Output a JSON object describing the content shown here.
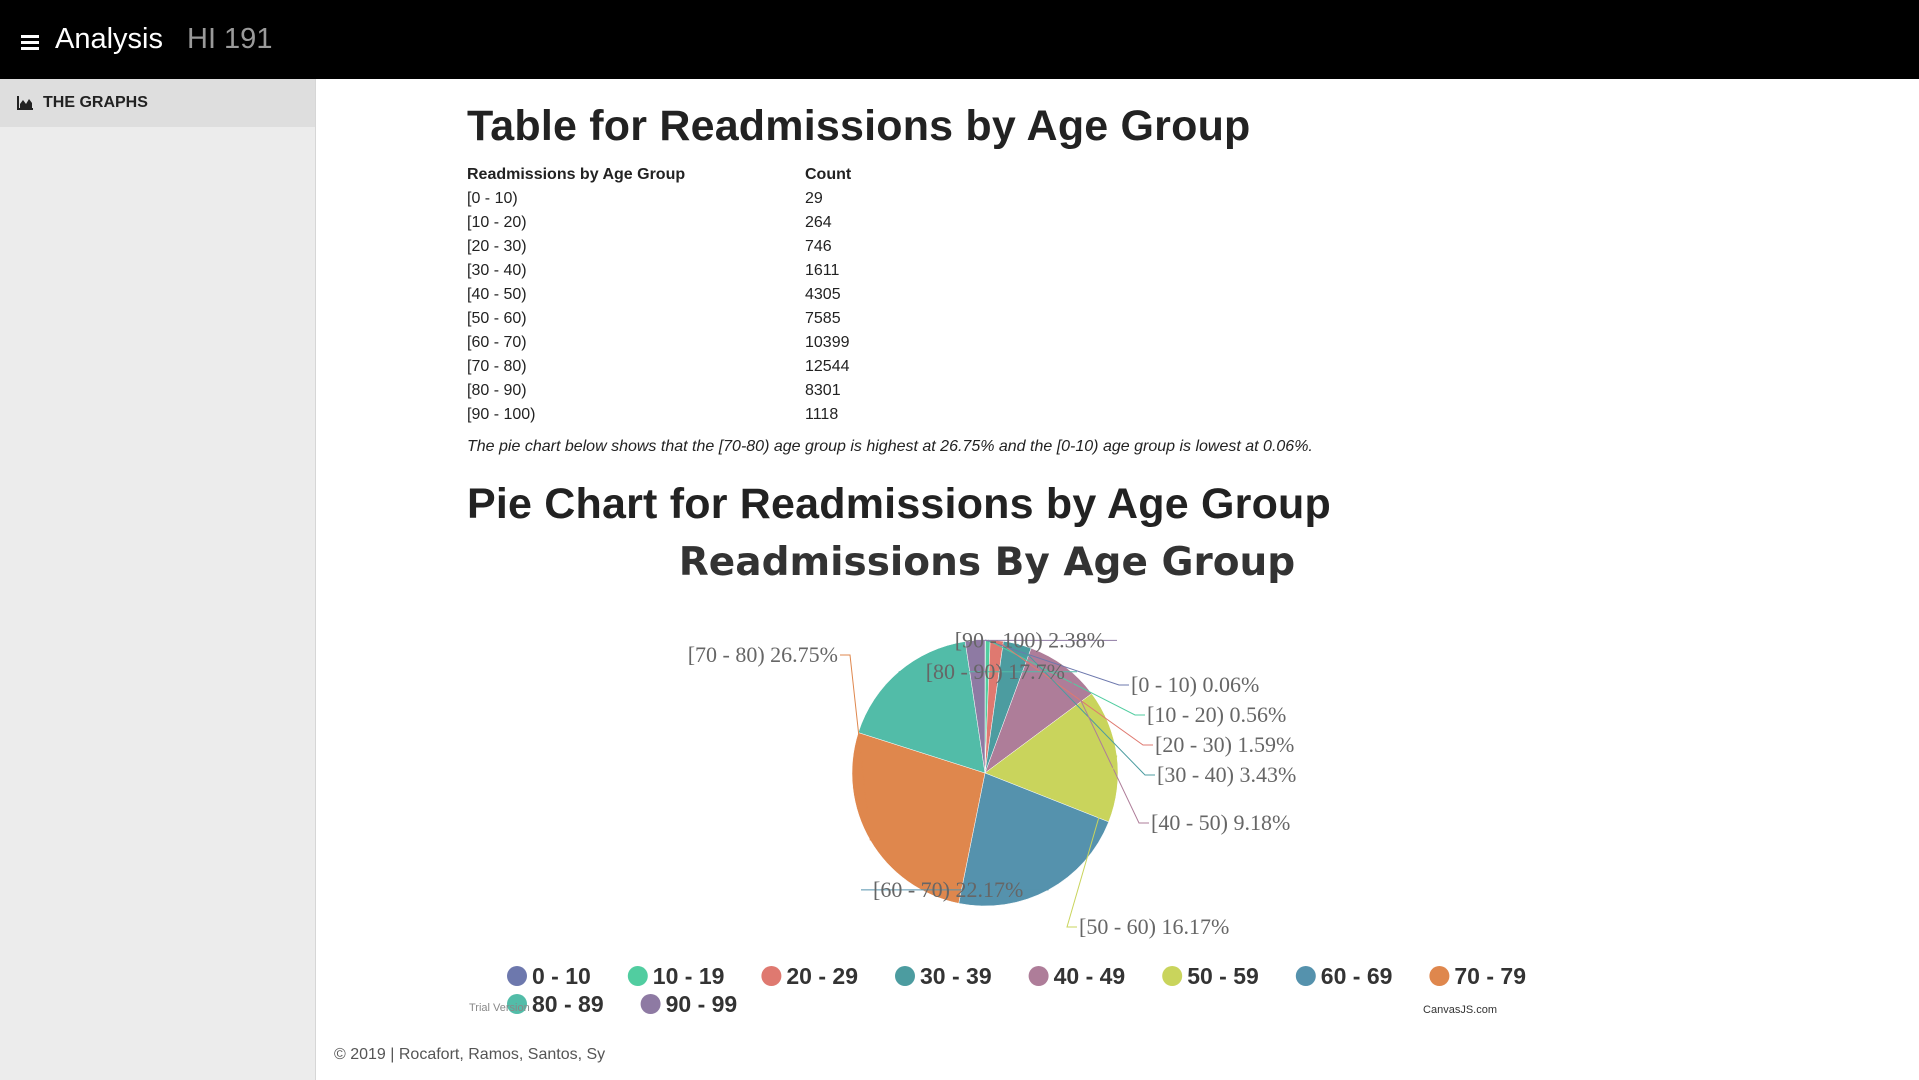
{
  "header": {
    "menu_icon": "hamburger-menu-icon",
    "title": "Analysis",
    "subtitle": "HI 191"
  },
  "sidebar": {
    "items": [
      {
        "icon": "area-chart-icon",
        "label": "THE GRAPHS"
      }
    ]
  },
  "main": {
    "table_heading": "Table for Readmissions by Age Group",
    "table": {
      "columns": [
        "Readmissions by Age Group",
        "Count"
      ],
      "rows": [
        [
          "[0 - 10)",
          "29"
        ],
        [
          "[10 - 20)",
          "264"
        ],
        [
          "[20 - 30)",
          "746"
        ],
        [
          "[30 - 40)",
          "1611"
        ],
        [
          "[40 - 50)",
          "4305"
        ],
        [
          "[50 - 60)",
          "7585"
        ],
        [
          "[60 - 70)",
          "10399"
        ],
        [
          "[70 - 80)",
          "12544"
        ],
        [
          "[80 - 90)",
          "8301"
        ],
        [
          "[90 - 100)",
          "1118"
        ]
      ]
    },
    "note": "The pie chart below shows that the [70-80) age group is highest at 26.75% and the [0-10) age group is lowest at 0.06%.",
    "pie_heading": "Pie Chart for Readmissions by Age Group"
  },
  "chart_data": {
    "type": "pie",
    "title": "Readmissions By Age Group",
    "slices": [
      {
        "label": "[0 - 10) 0.06%",
        "legend": "0 - 10",
        "value": 0.06,
        "color": "#6d78ad"
      },
      {
        "label": "[10 - 20) 0.56%",
        "legend": "10 - 19",
        "value": 0.56,
        "color": "#51cda0"
      },
      {
        "label": "[20 - 30) 1.59%",
        "legend": "20 - 29",
        "value": 1.59,
        "color": "#df7970"
      },
      {
        "label": "[30 - 40) 3.43%",
        "legend": "30 - 39",
        "value": 3.43,
        "color": "#4c9ca0"
      },
      {
        "label": "[40 - 50) 9.18%",
        "legend": "40 - 49",
        "value": 9.18,
        "color": "#ae7d99"
      },
      {
        "label": "[50 - 60) 16.17%",
        "legend": "50 - 59",
        "value": 16.17,
        "color": "#c9d45c"
      },
      {
        "label": "[60 - 70) 22.17%",
        "legend": "60 - 69",
        "value": 22.17,
        "color": "#5592ad"
      },
      {
        "label": "[70 - 80) 26.75%",
        "legend": "70 - 79",
        "value": 26.75,
        "color": "#df874d"
      },
      {
        "label": "[80 - 90) 17.7%",
        "legend": "80 - 89",
        "value": 17.7,
        "color": "#52bca8"
      },
      {
        "label": "[90 - 100) 2.38%",
        "legend": "90 - 99",
        "value": 2.38,
        "color": "#8e7aa3"
      }
    ],
    "trial_text": "Trial Version",
    "credit": "CanvasJS.com"
  },
  "footer": "© 2019 | Rocafort, Ramos, Santos, Sy"
}
